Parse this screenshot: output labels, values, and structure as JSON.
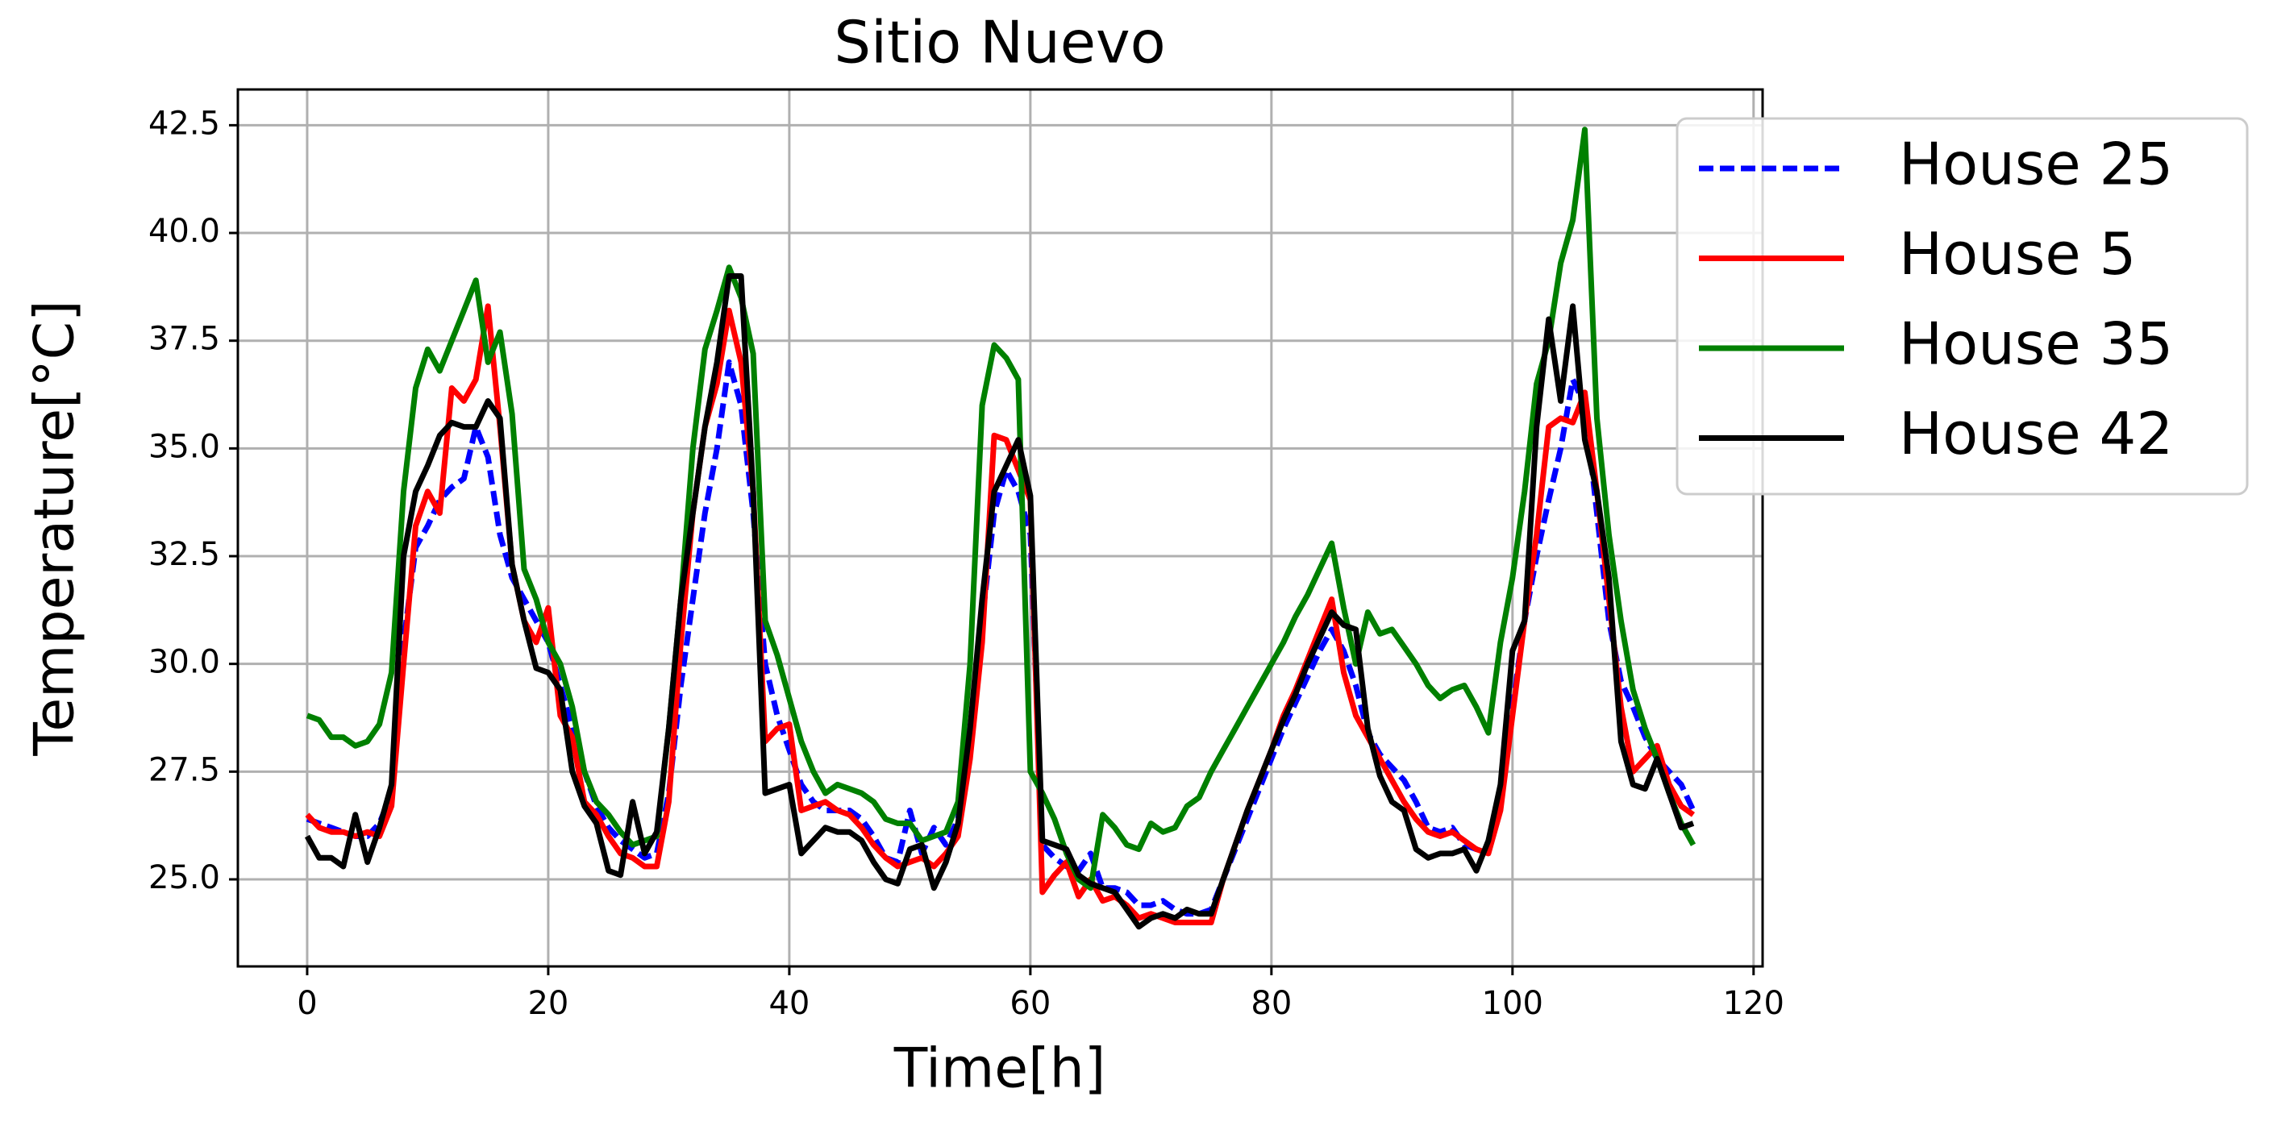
{
  "chart_data": {
    "type": "line",
    "title": "Sitio Nuevo",
    "xlabel": "Time[h]",
    "ylabel": "Temperature[°C]",
    "x": [
      0,
      1,
      2,
      3,
      4,
      5,
      6,
      7,
      8,
      9,
      10,
      11,
      12,
      13,
      14,
      15,
      16,
      17,
      18,
      19,
      20,
      21,
      22,
      23,
      24,
      25,
      26,
      27,
      28,
      29,
      30,
      31,
      32,
      33,
      34,
      35,
      36,
      37,
      38,
      39,
      40,
      41,
      42,
      43,
      44,
      45,
      46,
      47,
      48,
      49,
      50,
      51,
      52,
      53,
      54,
      55,
      56,
      57,
      58,
      59,
      60,
      61,
      62,
      63,
      64,
      65,
      66,
      67,
      68,
      69,
      70,
      71,
      72,
      73,
      74,
      75,
      76,
      77,
      78,
      79,
      80,
      81,
      82,
      83,
      84,
      85,
      86,
      87,
      88,
      89,
      90,
      91,
      92,
      93,
      94,
      95,
      96,
      97,
      98,
      99,
      100,
      101,
      102,
      103,
      104,
      105,
      106,
      107,
      108,
      109,
      110,
      111,
      112,
      113,
      114,
      115
    ],
    "series": [
      {
        "name": "House 25",
        "color": "#0000ff",
        "linestyle": "dashed",
        "values": [
          26.4,
          26.3,
          26.2,
          26.1,
          26.0,
          26.0,
          26.3,
          27.0,
          30.5,
          32.7,
          33.2,
          33.8,
          34.1,
          34.3,
          35.5,
          34.8,
          33.0,
          32.0,
          31.5,
          31.0,
          30.5,
          29.5,
          28.5,
          27.5,
          26.7,
          26.2,
          25.9,
          25.7,
          25.5,
          25.6,
          27.0,
          29.5,
          31.5,
          33.5,
          35.0,
          37.0,
          36.0,
          33.5,
          30.0,
          28.8,
          28.0,
          27.2,
          26.8,
          26.6,
          26.6,
          26.6,
          26.4,
          26.0,
          25.5,
          25.4,
          26.6,
          25.6,
          26.2,
          25.8,
          26.4,
          28.5,
          31.0,
          33.5,
          34.5,
          34.0,
          33.0,
          25.8,
          25.5,
          25.3,
          25.2,
          25.6,
          24.8,
          24.8,
          24.7,
          24.4,
          24.4,
          24.5,
          24.3,
          24.2,
          24.2,
          24.3,
          25.0,
          25.7,
          26.4,
          27.1,
          27.8,
          28.5,
          29.1,
          29.7,
          30.3,
          30.8,
          30.3,
          29.5,
          28.4,
          27.9,
          27.6,
          27.3,
          26.8,
          26.2,
          26.1,
          26.2,
          25.8,
          25.7,
          25.7,
          26.8,
          29.0,
          31.0,
          32.5,
          33.8,
          35.0,
          36.6,
          36.0,
          33.5,
          31.0,
          29.6,
          29.0,
          28.3,
          27.8,
          27.5,
          27.2,
          26.6
        ]
      },
      {
        "name": "House 5",
        "color": "#ff0000",
        "linestyle": "solid",
        "values": [
          26.5,
          26.2,
          26.1,
          26.1,
          26.0,
          26.1,
          26.0,
          26.7,
          30.0,
          33.2,
          34.0,
          33.5,
          36.4,
          36.1,
          36.6,
          38.3,
          35.5,
          32.3,
          31.0,
          30.5,
          31.3,
          28.8,
          28.3,
          26.8,
          26.5,
          26.0,
          25.6,
          25.5,
          25.3,
          25.3,
          26.8,
          30.5,
          33.5,
          35.5,
          36.5,
          38.2,
          37.0,
          34.0,
          28.2,
          28.5,
          28.6,
          26.6,
          26.7,
          26.8,
          26.6,
          26.5,
          26.2,
          25.8,
          25.5,
          25.3,
          25.4,
          25.5,
          25.3,
          25.6,
          26.0,
          27.8,
          30.5,
          35.3,
          35.2,
          34.5,
          33.8,
          24.7,
          25.1,
          25.4,
          24.6,
          25.0,
          24.5,
          24.6,
          24.4,
          24.1,
          24.2,
          24.1,
          24.0,
          24.0,
          24.0,
          24.0,
          25.0,
          25.8,
          26.6,
          27.3,
          28.0,
          28.8,
          29.4,
          30.1,
          30.8,
          31.5,
          29.8,
          28.8,
          28.3,
          27.8,
          27.3,
          26.8,
          26.4,
          26.1,
          26.0,
          26.1,
          25.9,
          25.7,
          25.6,
          26.6,
          28.8,
          31.0,
          33.0,
          35.5,
          35.7,
          35.6,
          36.3,
          34.0,
          31.5,
          29.0,
          27.5,
          27.8,
          28.1,
          27.2,
          26.7,
          26.5
        ]
      },
      {
        "name": "House 35",
        "color": "#008000",
        "linestyle": "solid",
        "values": [
          28.8,
          28.7,
          28.3,
          28.3,
          28.1,
          28.2,
          28.6,
          29.8,
          34.0,
          36.4,
          37.3,
          36.8,
          37.5,
          38.2,
          38.9,
          37.0,
          37.7,
          35.8,
          32.2,
          31.5,
          30.5,
          30.0,
          29.0,
          27.5,
          26.8,
          26.5,
          26.1,
          25.8,
          25.9,
          26.0,
          28.5,
          31.5,
          35.0,
          37.3,
          38.2,
          39.2,
          38.5,
          37.2,
          31.0,
          30.2,
          29.2,
          28.2,
          27.5,
          27.0,
          27.2,
          27.1,
          27.0,
          26.8,
          26.4,
          26.3,
          26.3,
          25.9,
          26.0,
          26.1,
          26.8,
          30.0,
          36.0,
          37.4,
          37.1,
          36.6,
          27.5,
          27.0,
          26.4,
          25.6,
          25.0,
          24.8,
          26.5,
          26.2,
          25.8,
          25.7,
          26.3,
          26.1,
          26.2,
          26.7,
          26.9,
          27.5,
          28.0,
          28.5,
          29.0,
          29.5,
          30.0,
          30.5,
          31.1,
          31.6,
          32.2,
          32.8,
          31.3,
          30.0,
          31.2,
          30.7,
          30.8,
          30.4,
          30.0,
          29.5,
          29.2,
          29.4,
          29.5,
          29.0,
          28.4,
          30.5,
          32.0,
          34.0,
          36.5,
          37.5,
          39.3,
          40.3,
          42.4,
          35.7,
          33.0,
          31.0,
          29.4,
          28.5,
          27.8,
          27.0,
          26.3,
          25.8
        ]
      },
      {
        "name": "House 42",
        "color": "#000000",
        "linestyle": "solid",
        "values": [
          26.0,
          25.5,
          25.5,
          25.3,
          26.5,
          25.4,
          26.2,
          27.2,
          32.5,
          34.0,
          34.6,
          35.3,
          35.6,
          35.5,
          35.5,
          36.1,
          35.7,
          32.3,
          31.0,
          29.9,
          29.8,
          29.4,
          27.5,
          26.7,
          26.3,
          25.2,
          25.1,
          26.8,
          25.6,
          26.1,
          28.5,
          31.5,
          33.5,
          35.5,
          37.0,
          39.0,
          39.0,
          34.0,
          27.0,
          27.1,
          27.2,
          25.6,
          25.9,
          26.2,
          26.1,
          26.1,
          25.9,
          25.4,
          25.0,
          24.9,
          25.7,
          25.8,
          24.8,
          25.4,
          26.3,
          28.5,
          31.5,
          34.0,
          34.6,
          35.2,
          33.9,
          25.9,
          25.8,
          25.7,
          25.1,
          24.9,
          24.8,
          24.7,
          24.3,
          23.9,
          24.1,
          24.2,
          24.1,
          24.3,
          24.2,
          24.2,
          25.0,
          25.8,
          26.6,
          27.3,
          28.0,
          28.7,
          29.3,
          30.0,
          30.6,
          31.2,
          30.9,
          30.8,
          28.5,
          27.4,
          26.8,
          26.6,
          25.7,
          25.5,
          25.6,
          25.6,
          25.7,
          25.2,
          25.9,
          27.2,
          30.3,
          31.0,
          35.5,
          38.0,
          36.1,
          38.3,
          35.2,
          34.0,
          32.0,
          28.2,
          27.2,
          27.1,
          27.8,
          27.0,
          26.2,
          26.3
        ]
      }
    ],
    "xlim": [
      -5.75,
      120.75
    ],
    "ylim": [
      22.98,
      43.33
    ],
    "xticks": [
      0,
      20,
      40,
      60,
      80,
      100,
      120
    ],
    "yticks": [
      {
        "value": 25.0,
        "label": "25.0"
      },
      27.5,
      {
        "value": 30.0,
        "label": "30.0"
      },
      32.5,
      {
        "value": 35.0,
        "label": "35.0"
      },
      37.5,
      {
        "value": 40.0,
        "label": "40.0"
      },
      42.5
    ],
    "grid": true,
    "legend": "upper right"
  }
}
